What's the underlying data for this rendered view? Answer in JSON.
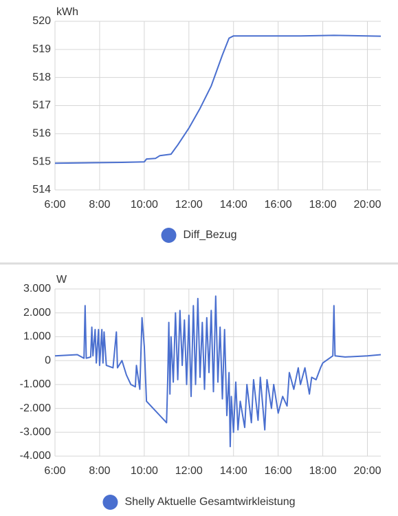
{
  "chart_data": [
    {
      "type": "line",
      "ylabel": "kWh",
      "x": [
        6.0,
        9.0,
        10.0,
        10.1,
        10.5,
        10.7,
        11.2,
        11.5,
        12.0,
        12.5,
        13.0,
        13.5,
        13.8,
        14.0,
        17.0,
        18.5,
        20.6
      ],
      "series": [
        {
          "name": "Diff_Bezug",
          "color": "#4a6fcf",
          "values": [
            514.95,
            514.98,
            515.0,
            515.1,
            515.12,
            515.22,
            515.27,
            515.6,
            516.2,
            516.9,
            517.7,
            518.8,
            519.4,
            519.48,
            519.48,
            519.5,
            519.47
          ]
        }
      ],
      "xlim": [
        6,
        20.6
      ],
      "xticks": [
        {
          "value": 6,
          "label": "6:00"
        },
        {
          "value": 8,
          "label": "8:00"
        },
        {
          "value": 10,
          "label": "10:00"
        },
        {
          "value": 12,
          "label": "12:00"
        },
        {
          "value": 14,
          "label": "14:00"
        },
        {
          "value": 16,
          "label": "16:00"
        },
        {
          "value": 18,
          "label": "18:00"
        },
        {
          "value": 20,
          "label": "20:00"
        }
      ],
      "ylim": [
        514,
        520
      ],
      "yticks": [
        514,
        515,
        516,
        517,
        518,
        519,
        520
      ],
      "grid": true
    },
    {
      "type": "line",
      "ylabel": "W",
      "x": [
        6.0,
        7.0,
        7.3,
        7.35,
        7.4,
        7.6,
        7.65,
        7.7,
        7.8,
        7.85,
        7.95,
        8.0,
        8.1,
        8.15,
        8.2,
        8.3,
        8.6,
        8.75,
        8.8,
        9.0,
        9.2,
        9.4,
        9.6,
        9.65,
        9.8,
        9.9,
        10.0,
        10.1,
        10.4,
        10.7,
        10.9,
        11.0,
        11.05,
        11.1,
        11.15,
        11.2,
        11.3,
        11.4,
        11.5,
        11.6,
        11.7,
        11.8,
        11.9,
        12.0,
        12.1,
        12.2,
        12.3,
        12.4,
        12.5,
        12.6,
        12.7,
        12.8,
        12.9,
        13.0,
        13.1,
        13.2,
        13.3,
        13.4,
        13.5,
        13.6,
        13.7,
        13.8,
        13.85,
        13.9,
        14.0,
        14.1,
        14.2,
        14.3,
        14.5,
        14.6,
        14.8,
        14.9,
        15.1,
        15.2,
        15.4,
        15.5,
        15.7,
        15.8,
        16.0,
        16.2,
        16.4,
        16.5,
        16.7,
        16.9,
        17.0,
        17.2,
        17.4,
        17.5,
        17.7,
        17.9,
        18.0,
        18.3,
        18.45,
        18.5,
        18.55,
        19.0,
        20.0,
        20.6
      ],
      "series": [
        {
          "name": "Shelly Aktuelle Gesamtwirkleistung",
          "color": "#4a6fcf",
          "values": [
            200,
            250,
            100,
            2300,
            100,
            150,
            1400,
            200,
            1300,
            -100,
            1300,
            -200,
            1300,
            -100,
            1200,
            -200,
            -300,
            1200,
            -300,
            0,
            -600,
            -1000,
            -1100,
            -200,
            -1200,
            1800,
            600,
            -1700,
            -2000,
            -2300,
            -2500,
            -2600,
            -800,
            1600,
            -1400,
            1000,
            -900,
            2000,
            -800,
            2100,
            -200,
            1700,
            -1000,
            1900,
            -1500,
            2300,
            -1000,
            2600,
            -700,
            1600,
            -1200,
            1800,
            -500,
            2100,
            -1300,
            2700,
            -900,
            1400,
            -1600,
            1300,
            -2300,
            -500,
            -3600,
            -1500,
            -3000,
            -900,
            -2900,
            -1700,
            -2800,
            -1000,
            -2600,
            -800,
            -2500,
            -700,
            -2900,
            -800,
            -2000,
            -1000,
            -2200,
            -1500,
            -1900,
            -500,
            -1200,
            -300,
            -1000,
            -300,
            -1400,
            -700,
            -800,
            -300,
            -100,
            100,
            200,
            2300,
            200,
            150,
            200,
            250
          ]
        }
      ],
      "xlim": [
        6,
        20.6
      ],
      "xticks": [
        {
          "value": 6,
          "label": "6:00"
        },
        {
          "value": 8,
          "label": "8:00"
        },
        {
          "value": 10,
          "label": "10:00"
        },
        {
          "value": 12,
          "label": "12:00"
        },
        {
          "value": 14,
          "label": "14:00"
        },
        {
          "value": 16,
          "label": "16:00"
        },
        {
          "value": 18,
          "label": "18:00"
        },
        {
          "value": 20,
          "label": "20:00"
        }
      ],
      "ylim": [
        -4000,
        3000
      ],
      "yticks": [
        {
          "value": -4000,
          "label": "-4.000"
        },
        {
          "value": -3000,
          "label": "-3.000"
        },
        {
          "value": -2000,
          "label": "-2.000"
        },
        {
          "value": -1000,
          "label": "-1.000"
        },
        0,
        {
          "value": 1000,
          "label": "1.000"
        },
        {
          "value": 2000,
          "label": "2.000"
        },
        {
          "value": 3000,
          "label": "3.000"
        }
      ],
      "grid": true
    }
  ]
}
